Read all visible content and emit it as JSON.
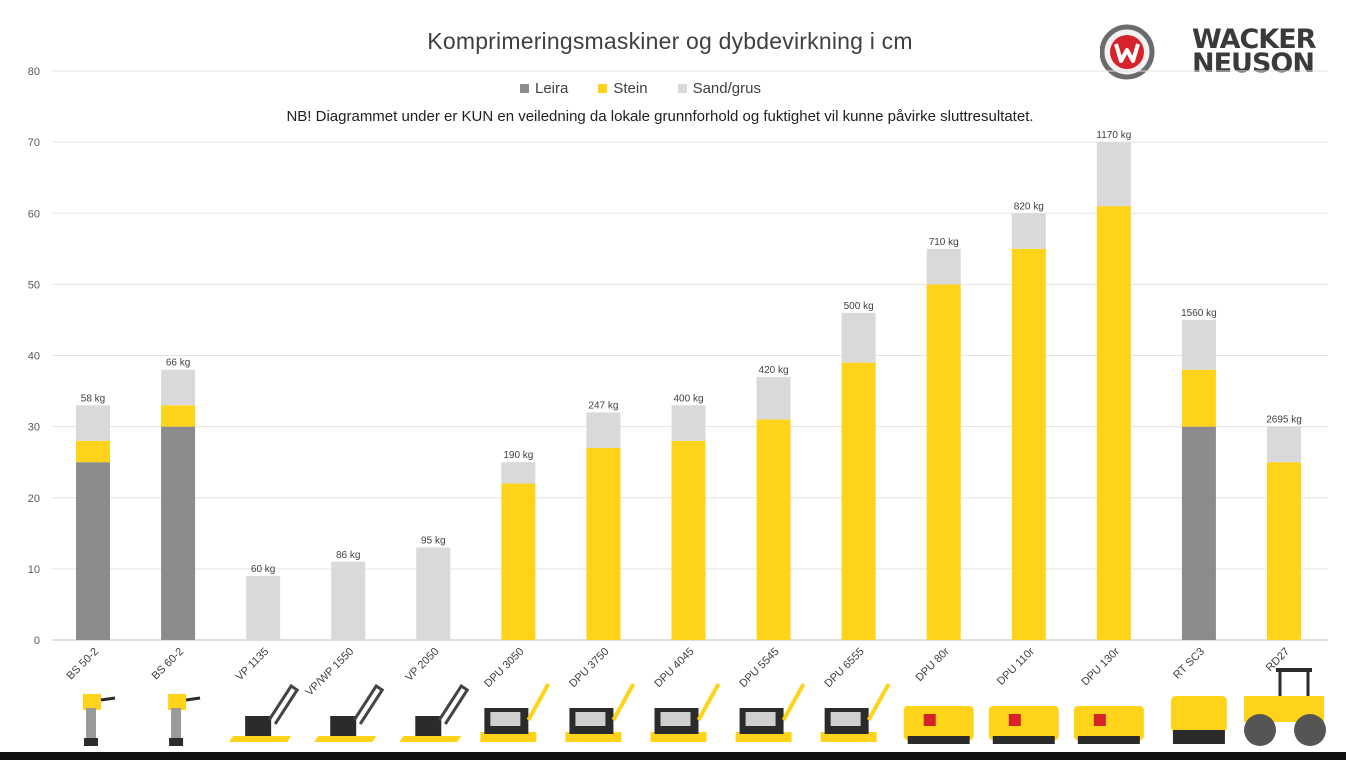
{
  "chart_data": {
    "type": "bar",
    "stacked": true,
    "title": "Komprimeringsmaskiner og dybdevirkning i cm",
    "subtitle": "NB! Diagrammet under er KUN en veiledning da lokale grunnforhold og fuktighet vil kunne påvirke sluttresultatet.",
    "xlabel": "",
    "ylabel": "",
    "ylim": [
      0,
      80
    ],
    "yticks": [
      0,
      10,
      20,
      30,
      40,
      50,
      60,
      70,
      80
    ],
    "grid": true,
    "legend_position": "top",
    "categories": [
      "BS 50-2",
      "BS 60-2",
      "VP 1135",
      "VP/WP 1550",
      "VP 2050",
      "DPU 3050",
      "DPU 3750",
      "DPU 4045",
      "DPU 5545",
      "DPU 6555",
      "DPU 80r",
      "DPU 110r",
      "DPU 130r",
      "RT SC3",
      "RD27"
    ],
    "weights": [
      "58 kg",
      "66 kg",
      "60 kg",
      "86 kg",
      "95 kg",
      "190 kg",
      "247 kg",
      "400 kg",
      "420 kg",
      "500 kg",
      "710 kg",
      "820 kg",
      "1170 kg",
      "1560 kg",
      "2695 kg"
    ],
    "series": [
      {
        "name": "Leira",
        "color": "#8c8c8c",
        "values": [
          25,
          30,
          0,
          0,
          0,
          0,
          0,
          0,
          0,
          0,
          0,
          0,
          0,
          30,
          0
        ]
      },
      {
        "name": "Stein",
        "color": "#ffd31a",
        "values": [
          3,
          3,
          0,
          0,
          0,
          22,
          27,
          28,
          31,
          39,
          50,
          55,
          61,
          8,
          25
        ]
      },
      {
        "name": "Sand/grus",
        "color": "#d9d9d9",
        "values": [
          5,
          5,
          9,
          11,
          13,
          3,
          5,
          5,
          6,
          7,
          5,
          5,
          9,
          7,
          5
        ]
      }
    ]
  },
  "brand": {
    "name_line1": "WACKER",
    "name_line2": "NEUSON",
    "logo_icon": "wacker-neuson-w-icon",
    "colors": {
      "logo_red": "#d6232a",
      "logo_grey": "#6b6b6b"
    }
  },
  "machine_icons": [
    "rammer-icon",
    "rammer-icon",
    "plate-compactor-icon",
    "plate-compactor-icon",
    "plate-compactor-icon",
    "reversible-plate-icon",
    "reversible-plate-icon",
    "reversible-plate-icon",
    "reversible-plate-icon",
    "reversible-plate-icon",
    "remote-reversible-plate-icon",
    "remote-reversible-plate-icon",
    "remote-reversible-plate-icon",
    "trench-roller-icon",
    "tandem-roller-icon"
  ]
}
